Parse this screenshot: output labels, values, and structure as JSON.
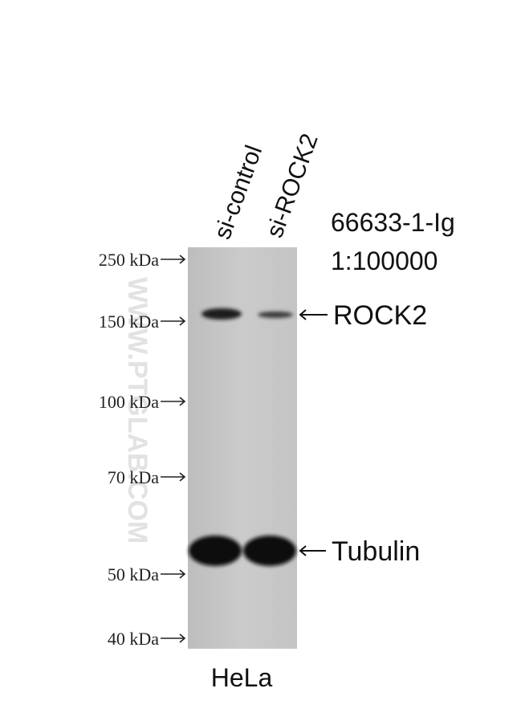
{
  "lanes": [
    "si-control",
    "si-ROCK2"
  ],
  "antibody": {
    "catalog": "66633-1-Ig",
    "dilution": "1:100000"
  },
  "markers": [
    "250 kDa",
    "150 kDa",
    "100 kDa",
    "70 kDa",
    "50 kDa",
    "40 kDa"
  ],
  "bands": [
    "ROCK2",
    "Tubulin"
  ],
  "sample": "HeLa",
  "watermark": "WWW.PTGLAB.COM"
}
